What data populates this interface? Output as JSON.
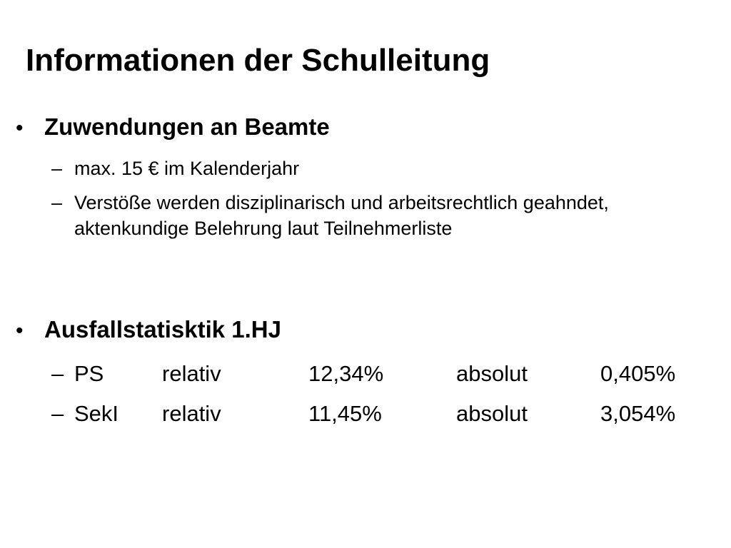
{
  "title": "Informationen der Schulleitung",
  "sections": [
    {
      "heading": "Zuwendungen an Beamte",
      "items": [
        "max. 15 € im Kalenderjahr",
        "Verstöße werden disziplinarisch und arbeitsrechtlich geahndet, aktenkundige Belehrung laut Teilnehmerliste"
      ]
    },
    {
      "heading": "Ausfallstatisktik 1.HJ",
      "rows": [
        {
          "school": "PS",
          "relative_label": "relativ",
          "relative_value": "12,34%",
          "absolute_label": "absolut",
          "absolute_value": "0,405%"
        },
        {
          "school": "SekI",
          "relative_label": "relativ",
          "relative_value": "11,45%",
          "absolute_label": "absolut",
          "absolute_value": "3,054%"
        }
      ]
    }
  ],
  "symbols": {
    "bullet": "•",
    "dash": "–"
  }
}
